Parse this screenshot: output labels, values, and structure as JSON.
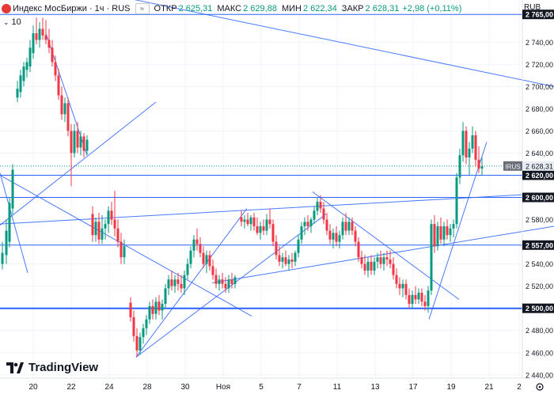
{
  "header": {
    "title": "Индекс МосБиржи · 1ч · RUS",
    "open_label": "ОТКР",
    "open_value": "2 625,31",
    "high_label": "МАКС",
    "high_value": "2 629,88",
    "low_label": "МИН",
    "low_value": "2 622,34",
    "close_label": "ЗАКР",
    "close_value": "2 628,31",
    "change": "+2,98 (+0,11%)"
  },
  "volume_indicator": "10",
  "currency": "RUB",
  "brand": "TradingView",
  "colors": {
    "up": "#089981",
    "down": "#f23645",
    "line": "#2962ff",
    "level": "#2962ff"
  },
  "chart_data": {
    "type": "candlestick",
    "ylim": [
      2437,
      2778
    ],
    "y_ticks": [
      "2 740,00",
      "2 720,00",
      "2 700,00",
      "2 680,00",
      "2 660,00",
      "2 640,00",
      "2 580,00",
      "2 540,00",
      "2 520,00",
      "2 480,00",
      "2 460,00",
      "2 440,00"
    ],
    "x_ticks": [
      "20",
      "22",
      "24",
      "28",
      "30",
      "Ноя",
      "5",
      "7",
      "11",
      "13",
      "17",
      "19",
      "21",
      "2"
    ],
    "levels": [
      {
        "value": 2765,
        "label": "2 765,00",
        "heavy": false
      },
      {
        "value": 2620,
        "label": "2 620,00",
        "heavy": false
      },
      {
        "value": 2600,
        "label": "2 600,00",
        "heavy": false
      },
      {
        "value": 2557,
        "label": "2 557,00",
        "heavy": false
      },
      {
        "value": 2500,
        "label": "2 500,00",
        "heavy": true
      }
    ],
    "last_price": {
      "ticker": "IRUS",
      "label": "2 628,31",
      "value": 2628.31
    },
    "trendlines": [
      {
        "x1": 145,
        "y1": 2782,
        "x2": 700,
        "y2": 2700
      },
      {
        "x1": 58,
        "y1": 2748,
        "x2": 110,
        "y2": 2638
      },
      {
        "x1": 0,
        "y1": 2575,
        "x2": 197,
        "y2": 2686
      },
      {
        "x1": 0,
        "y1": 2622,
        "x2": 35,
        "y2": 2532
      },
      {
        "x1": 0,
        "y1": 2620,
        "x2": 318,
        "y2": 2493
      },
      {
        "x1": 0,
        "y1": 2576,
        "x2": 700,
        "y2": 2604
      },
      {
        "x1": 172,
        "y1": 2456,
        "x2": 312,
        "y2": 2590
      },
      {
        "x1": 172,
        "y1": 2456,
        "x2": 412,
        "y2": 2585
      },
      {
        "x1": 268,
        "y1": 2523,
        "x2": 700,
        "y2": 2574
      },
      {
        "x1": 395,
        "y1": 2605,
        "x2": 580,
        "y2": 2508
      },
      {
        "x1": 542,
        "y1": 2490,
        "x2": 615,
        "y2": 2650
      }
    ],
    "candles": [
      {
        "x": 3,
        "o": 2540,
        "h": 2560,
        "l": 2535,
        "c": 2550
      },
      {
        "x": 8,
        "o": 2548,
        "h": 2580,
        "l": 2540,
        "c": 2570
      },
      {
        "x": 12,
        "o": 2560,
        "h": 2600,
        "l": 2555,
        "c": 2595
      },
      {
        "x": 16,
        "o": 2590,
        "h": 2630,
        "l": 2585,
        "c": 2625
      },
      {
        "x": 22,
        "o": 2690,
        "h": 2705,
        "l": 2686,
        "c": 2698
      },
      {
        "x": 26,
        "o": 2695,
        "h": 2715,
        "l": 2690,
        "c": 2710
      },
      {
        "x": 30,
        "o": 2705,
        "h": 2722,
        "l": 2700,
        "c": 2718
      },
      {
        "x": 34,
        "o": 2715,
        "h": 2726,
        "l": 2708,
        "c": 2722
      },
      {
        "x": 38,
        "o": 2718,
        "h": 2742,
        "l": 2713,
        "c": 2735
      },
      {
        "x": 42,
        "o": 2730,
        "h": 2755,
        "l": 2725,
        "c": 2748
      },
      {
        "x": 46,
        "o": 2748,
        "h": 2762,
        "l": 2738,
        "c": 2742
      },
      {
        "x": 50,
        "o": 2742,
        "h": 2758,
        "l": 2735,
        "c": 2752
      },
      {
        "x": 54,
        "o": 2752,
        "h": 2762,
        "l": 2742,
        "c": 2746
      },
      {
        "x": 58,
        "o": 2746,
        "h": 2760,
        "l": 2738,
        "c": 2742
      },
      {
        "x": 62,
        "o": 2742,
        "h": 2752,
        "l": 2730,
        "c": 2735
      },
      {
        "x": 66,
        "o": 2735,
        "h": 2742,
        "l": 2718,
        "c": 2722
      },
      {
        "x": 70,
        "o": 2722,
        "h": 2728,
        "l": 2705,
        "c": 2710
      },
      {
        "x": 74,
        "o": 2710,
        "h": 2716,
        "l": 2688,
        "c": 2692
      },
      {
        "x": 78,
        "o": 2692,
        "h": 2700,
        "l": 2670,
        "c": 2675
      },
      {
        "x": 82,
        "o": 2675,
        "h": 2690,
        "l": 2668,
        "c": 2685
      },
      {
        "x": 86,
        "o": 2685,
        "h": 2690,
        "l": 2655,
        "c": 2660
      },
      {
        "x": 90,
        "o": 2660,
        "h": 2666,
        "l": 2610,
        "c": 2640
      },
      {
        "x": 94,
        "o": 2640,
        "h": 2666,
        "l": 2636,
        "c": 2660
      },
      {
        "x": 98,
        "o": 2660,
        "h": 2668,
        "l": 2640,
        "c": 2645
      },
      {
        "x": 102,
        "o": 2645,
        "h": 2660,
        "l": 2638,
        "c": 2655
      },
      {
        "x": 106,
        "o": 2655,
        "h": 2658,
        "l": 2636,
        "c": 2642
      },
      {
        "x": 110,
        "o": 2642,
        "h": 2656,
        "l": 2638,
        "c": 2652
      },
      {
        "x": 117,
        "o": 2585,
        "h": 2592,
        "l": 2560,
        "c": 2566
      },
      {
        "x": 121,
        "o": 2566,
        "h": 2582,
        "l": 2560,
        "c": 2578
      },
      {
        "x": 125,
        "o": 2578,
        "h": 2586,
        "l": 2558,
        "c": 2562
      },
      {
        "x": 129,
        "o": 2562,
        "h": 2584,
        "l": 2558,
        "c": 2572
      },
      {
        "x": 133,
        "o": 2572,
        "h": 2580,
        "l": 2562,
        "c": 2576
      },
      {
        "x": 137,
        "o": 2576,
        "h": 2592,
        "l": 2568,
        "c": 2588
      },
      {
        "x": 141,
        "o": 2588,
        "h": 2596,
        "l": 2575,
        "c": 2580
      },
      {
        "x": 145,
        "o": 2580,
        "h": 2606,
        "l": 2565,
        "c": 2572
      },
      {
        "x": 149,
        "o": 2572,
        "h": 2580,
        "l": 2555,
        "c": 2560
      },
      {
        "x": 153,
        "o": 2560,
        "h": 2568,
        "l": 2540,
        "c": 2546
      },
      {
        "x": 157,
        "o": 2546,
        "h": 2562,
        "l": 2540,
        "c": 2556
      },
      {
        "x": 165,
        "o": 2505,
        "h": 2510,
        "l": 2488,
        "c": 2492
      },
      {
        "x": 169,
        "o": 2492,
        "h": 2498,
        "l": 2470,
        "c": 2475
      },
      {
        "x": 173,
        "o": 2475,
        "h": 2482,
        "l": 2456,
        "c": 2462
      },
      {
        "x": 177,
        "o": 2462,
        "h": 2478,
        "l": 2458,
        "c": 2474
      },
      {
        "x": 181,
        "o": 2474,
        "h": 2486,
        "l": 2468,
        "c": 2482
      },
      {
        "x": 185,
        "o": 2482,
        "h": 2494,
        "l": 2476,
        "c": 2490
      },
      {
        "x": 189,
        "o": 2490,
        "h": 2506,
        "l": 2486,
        "c": 2502
      },
      {
        "x": 193,
        "o": 2502,
        "h": 2508,
        "l": 2490,
        "c": 2495
      },
      {
        "x": 197,
        "o": 2495,
        "h": 2510,
        "l": 2490,
        "c": 2506
      },
      {
        "x": 201,
        "o": 2506,
        "h": 2512,
        "l": 2494,
        "c": 2498
      },
      {
        "x": 205,
        "o": 2498,
        "h": 2508,
        "l": 2490,
        "c": 2504
      },
      {
        "x": 209,
        "o": 2504,
        "h": 2522,
        "l": 2500,
        "c": 2518
      },
      {
        "x": 213,
        "o": 2518,
        "h": 2530,
        "l": 2512,
        "c": 2526
      },
      {
        "x": 217,
        "o": 2526,
        "h": 2534,
        "l": 2516,
        "c": 2520
      },
      {
        "x": 221,
        "o": 2520,
        "h": 2530,
        "l": 2514,
        "c": 2526
      },
      {
        "x": 225,
        "o": 2526,
        "h": 2532,
        "l": 2516,
        "c": 2522
      },
      {
        "x": 229,
        "o": 2522,
        "h": 2530,
        "l": 2514,
        "c": 2518
      },
      {
        "x": 233,
        "o": 2518,
        "h": 2534,
        "l": 2512,
        "c": 2530
      },
      {
        "x": 237,
        "o": 2530,
        "h": 2545,
        "l": 2526,
        "c": 2540
      },
      {
        "x": 241,
        "o": 2540,
        "h": 2556,
        "l": 2536,
        "c": 2552
      },
      {
        "x": 245,
        "o": 2552,
        "h": 2566,
        "l": 2546,
        "c": 2562
      },
      {
        "x": 249,
        "o": 2562,
        "h": 2572,
        "l": 2552,
        "c": 2558
      },
      {
        "x": 253,
        "o": 2558,
        "h": 2564,
        "l": 2546,
        "c": 2550
      },
      {
        "x": 257,
        "o": 2550,
        "h": 2556,
        "l": 2536,
        "c": 2540
      },
      {
        "x": 261,
        "o": 2540,
        "h": 2552,
        "l": 2532,
        "c": 2548
      },
      {
        "x": 265,
        "o": 2548,
        "h": 2552,
        "l": 2534,
        "c": 2538
      },
      {
        "x": 269,
        "o": 2538,
        "h": 2544,
        "l": 2526,
        "c": 2530
      },
      {
        "x": 273,
        "o": 2530,
        "h": 2536,
        "l": 2518,
        "c": 2522
      },
      {
        "x": 277,
        "o": 2522,
        "h": 2530,
        "l": 2516,
        "c": 2526
      },
      {
        "x": 281,
        "o": 2526,
        "h": 2532,
        "l": 2518,
        "c": 2522
      },
      {
        "x": 285,
        "o": 2522,
        "h": 2528,
        "l": 2514,
        "c": 2518
      },
      {
        "x": 289,
        "o": 2518,
        "h": 2530,
        "l": 2514,
        "c": 2526
      },
      {
        "x": 293,
        "o": 2526,
        "h": 2532,
        "l": 2518,
        "c": 2522
      },
      {
        "x": 297,
        "o": 2522,
        "h": 2530,
        "l": 2518,
        "c": 2528
      },
      {
        "x": 305,
        "o": 2582,
        "h": 2588,
        "l": 2574,
        "c": 2578
      },
      {
        "x": 309,
        "o": 2578,
        "h": 2584,
        "l": 2572,
        "c": 2580
      },
      {
        "x": 313,
        "o": 2580,
        "h": 2586,
        "l": 2574,
        "c": 2576
      },
      {
        "x": 317,
        "o": 2576,
        "h": 2584,
        "l": 2570,
        "c": 2582
      },
      {
        "x": 321,
        "o": 2582,
        "h": 2586,
        "l": 2570,
        "c": 2574
      },
      {
        "x": 325,
        "o": 2574,
        "h": 2582,
        "l": 2566,
        "c": 2568
      },
      {
        "x": 329,
        "o": 2568,
        "h": 2578,
        "l": 2562,
        "c": 2574
      },
      {
        "x": 333,
        "o": 2574,
        "h": 2580,
        "l": 2566,
        "c": 2570
      },
      {
        "x": 337,
        "o": 2570,
        "h": 2585,
        "l": 2566,
        "c": 2580
      },
      {
        "x": 341,
        "o": 2580,
        "h": 2590,
        "l": 2572,
        "c": 2576
      },
      {
        "x": 345,
        "o": 2576,
        "h": 2580,
        "l": 2556,
        "c": 2560
      },
      {
        "x": 349,
        "o": 2560,
        "h": 2566,
        "l": 2544,
        "c": 2548
      },
      {
        "x": 353,
        "o": 2548,
        "h": 2556,
        "l": 2538,
        "c": 2542
      },
      {
        "x": 357,
        "o": 2542,
        "h": 2550,
        "l": 2536,
        "c": 2546
      },
      {
        "x": 361,
        "o": 2546,
        "h": 2552,
        "l": 2538,
        "c": 2540
      },
      {
        "x": 365,
        "o": 2540,
        "h": 2548,
        "l": 2534,
        "c": 2544
      },
      {
        "x": 369,
        "o": 2544,
        "h": 2550,
        "l": 2536,
        "c": 2542
      },
      {
        "x": 373,
        "o": 2542,
        "h": 2552,
        "l": 2538,
        "c": 2550
      },
      {
        "x": 377,
        "o": 2550,
        "h": 2566,
        "l": 2546,
        "c": 2562
      },
      {
        "x": 381,
        "o": 2562,
        "h": 2578,
        "l": 2558,
        "c": 2574
      },
      {
        "x": 385,
        "o": 2574,
        "h": 2582,
        "l": 2566,
        "c": 2578
      },
      {
        "x": 389,
        "o": 2578,
        "h": 2584,
        "l": 2570,
        "c": 2574
      },
      {
        "x": 393,
        "o": 2574,
        "h": 2582,
        "l": 2568,
        "c": 2580
      },
      {
        "x": 397,
        "o": 2580,
        "h": 2592,
        "l": 2576,
        "c": 2588
      },
      {
        "x": 401,
        "o": 2588,
        "h": 2600,
        "l": 2584,
        "c": 2596
      },
      {
        "x": 405,
        "o": 2596,
        "h": 2602,
        "l": 2586,
        "c": 2590
      },
      {
        "x": 409,
        "o": 2590,
        "h": 2596,
        "l": 2576,
        "c": 2580
      },
      {
        "x": 413,
        "o": 2580,
        "h": 2586,
        "l": 2566,
        "c": 2570
      },
      {
        "x": 417,
        "o": 2570,
        "h": 2576,
        "l": 2558,
        "c": 2562
      },
      {
        "x": 421,
        "o": 2562,
        "h": 2572,
        "l": 2554,
        "c": 2568
      },
      {
        "x": 425,
        "o": 2568,
        "h": 2574,
        "l": 2556,
        "c": 2560
      },
      {
        "x": 429,
        "o": 2560,
        "h": 2570,
        "l": 2554,
        "c": 2566
      },
      {
        "x": 433,
        "o": 2566,
        "h": 2582,
        "l": 2562,
        "c": 2578
      },
      {
        "x": 437,
        "o": 2578,
        "h": 2586,
        "l": 2566,
        "c": 2570
      },
      {
        "x": 441,
        "o": 2570,
        "h": 2582,
        "l": 2566,
        "c": 2578
      },
      {
        "x": 445,
        "o": 2578,
        "h": 2582,
        "l": 2566,
        "c": 2570
      },
      {
        "x": 449,
        "o": 2570,
        "h": 2574,
        "l": 2556,
        "c": 2560
      },
      {
        "x": 453,
        "o": 2560,
        "h": 2564,
        "l": 2542,
        "c": 2546
      },
      {
        "x": 457,
        "o": 2546,
        "h": 2552,
        "l": 2536,
        "c": 2540
      },
      {
        "x": 461,
        "o": 2540,
        "h": 2548,
        "l": 2530,
        "c": 2534
      },
      {
        "x": 465,
        "o": 2534,
        "h": 2546,
        "l": 2528,
        "c": 2542
      },
      {
        "x": 469,
        "o": 2542,
        "h": 2548,
        "l": 2530,
        "c": 2534
      },
      {
        "x": 473,
        "o": 2534,
        "h": 2546,
        "l": 2530,
        "c": 2542
      },
      {
        "x": 477,
        "o": 2542,
        "h": 2550,
        "l": 2536,
        "c": 2546
      },
      {
        "x": 481,
        "o": 2546,
        "h": 2552,
        "l": 2536,
        "c": 2540
      },
      {
        "x": 485,
        "o": 2540,
        "h": 2550,
        "l": 2534,
        "c": 2546
      },
      {
        "x": 489,
        "o": 2546,
        "h": 2552,
        "l": 2538,
        "c": 2544
      },
      {
        "x": 493,
        "o": 2544,
        "h": 2552,
        "l": 2536,
        "c": 2540
      },
      {
        "x": 497,
        "o": 2540,
        "h": 2546,
        "l": 2526,
        "c": 2530
      },
      {
        "x": 501,
        "o": 2530,
        "h": 2536,
        "l": 2518,
        "c": 2522
      },
      {
        "x": 505,
        "o": 2522,
        "h": 2528,
        "l": 2512,
        "c": 2518
      },
      {
        "x": 509,
        "o": 2518,
        "h": 2526,
        "l": 2510,
        "c": 2522
      },
      {
        "x": 513,
        "o": 2522,
        "h": 2526,
        "l": 2508,
        "c": 2512
      },
      {
        "x": 517,
        "o": 2512,
        "h": 2518,
        "l": 2500,
        "c": 2504
      },
      {
        "x": 521,
        "o": 2504,
        "h": 2516,
        "l": 2500,
        "c": 2512
      },
      {
        "x": 525,
        "o": 2512,
        "h": 2520,
        "l": 2504,
        "c": 2508
      },
      {
        "x": 529,
        "o": 2508,
        "h": 2518,
        "l": 2504,
        "c": 2514
      },
      {
        "x": 533,
        "o": 2514,
        "h": 2518,
        "l": 2502,
        "c": 2506
      },
      {
        "x": 537,
        "o": 2506,
        "h": 2512,
        "l": 2498,
        "c": 2502
      },
      {
        "x": 541,
        "o": 2502,
        "h": 2520,
        "l": 2496,
        "c": 2516
      },
      {
        "x": 545,
        "o": 2516,
        "h": 2580,
        "l": 2512,
        "c": 2576
      },
      {
        "x": 549,
        "o": 2576,
        "h": 2584,
        "l": 2550,
        "c": 2556
      },
      {
        "x": 553,
        "o": 2556,
        "h": 2578,
        "l": 2552,
        "c": 2574
      },
      {
        "x": 557,
        "o": 2574,
        "h": 2582,
        "l": 2558,
        "c": 2562
      },
      {
        "x": 561,
        "o": 2562,
        "h": 2578,
        "l": 2556,
        "c": 2574
      },
      {
        "x": 565,
        "o": 2574,
        "h": 2580,
        "l": 2562,
        "c": 2566
      },
      {
        "x": 569,
        "o": 2566,
        "h": 2576,
        "l": 2560,
        "c": 2572
      },
      {
        "x": 573,
        "o": 2572,
        "h": 2580,
        "l": 2564,
        "c": 2576
      },
      {
        "x": 577,
        "o": 2576,
        "h": 2622,
        "l": 2572,
        "c": 2618
      },
      {
        "x": 581,
        "o": 2618,
        "h": 2644,
        "l": 2612,
        "c": 2638
      },
      {
        "x": 585,
        "o": 2638,
        "h": 2668,
        "l": 2632,
        "c": 2660
      },
      {
        "x": 589,
        "o": 2660,
        "h": 2664,
        "l": 2630,
        "c": 2636
      },
      {
        "x": 593,
        "o": 2636,
        "h": 2650,
        "l": 2620,
        "c": 2644
      },
      {
        "x": 597,
        "o": 2644,
        "h": 2664,
        "l": 2640,
        "c": 2656
      },
      {
        "x": 601,
        "o": 2656,
        "h": 2660,
        "l": 2628,
        "c": 2634
      },
      {
        "x": 605,
        "o": 2634,
        "h": 2646,
        "l": 2622,
        "c": 2626
      },
      {
        "x": 609,
        "o": 2626,
        "h": 2636,
        "l": 2620,
        "c": 2628
      }
    ]
  }
}
